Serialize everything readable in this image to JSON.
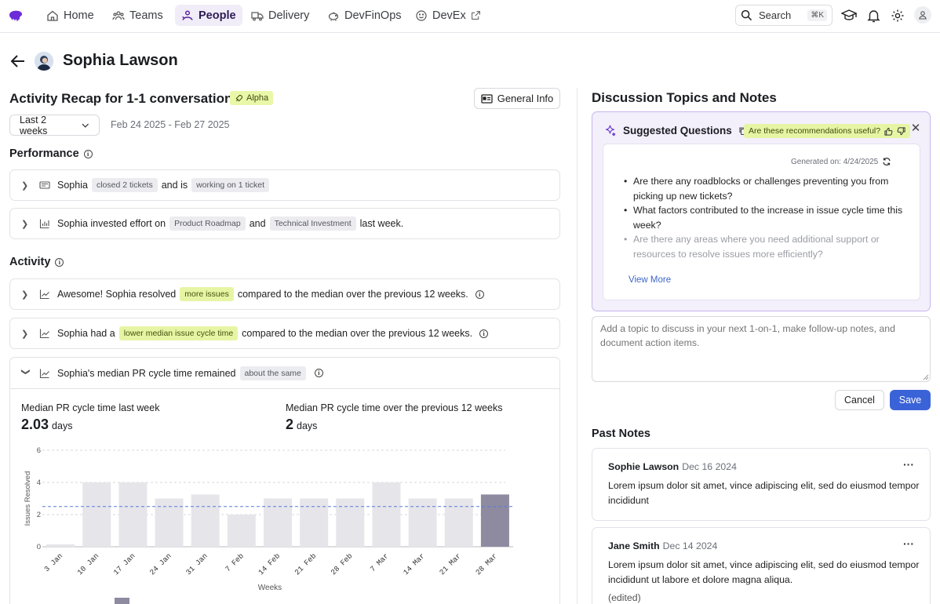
{
  "nav": {
    "items": [
      {
        "label": "Home",
        "icon": "home-icon"
      },
      {
        "label": "Teams",
        "icon": "teams-icon"
      },
      {
        "label": "People",
        "icon": "people-icon",
        "active": true
      },
      {
        "label": "Delivery",
        "icon": "truck-icon"
      },
      {
        "label": "DevFinOps",
        "icon": "piggy-bank-icon"
      },
      {
        "label": "DevEx",
        "icon": "smile-icon"
      }
    ],
    "search_label": "Search",
    "search_shortcut": "⌘K"
  },
  "person": {
    "name": "Sophia Lawson"
  },
  "recap": {
    "title": "Activity Recap for 1-1 conversations",
    "badge": "Alpha",
    "general_info": "General Info",
    "range_label": "Last 2 weeks",
    "date_range": "Feb 24 2025 - Feb 27 2025"
  },
  "performance": {
    "title": "Performance",
    "row1": {
      "name": "Sophia",
      "chip1": "closed 2 tickets",
      "mid": "and is",
      "chip2": "working on 1 ticket"
    },
    "row2": {
      "pre": "Sophia invested effort on",
      "chip1": "Product Roadmap",
      "mid": "and",
      "chip2": "Technical Investment",
      "post": "last week."
    }
  },
  "activity": {
    "title": "Activity",
    "row1": {
      "pre": "Awesome! Sophia resolved",
      "chip": "more issues",
      "post": "compared to the median over the previous 12 weeks."
    },
    "row2": {
      "pre": "Sophia had a",
      "chip": "lower median issue cycle time",
      "post": "compared to the median over the previous 12 weeks."
    },
    "row3": {
      "pre": "Sophia's median PR cycle time remained",
      "chip": "about the same",
      "metric1_label": "Median PR cycle time last week",
      "metric1_value": "2.03",
      "metric2_label": "Median PR cycle time over the previous 12 weeks",
      "metric2_value": "2",
      "unit": "days"
    }
  },
  "chart_data": {
    "type": "bar",
    "categories": [
      "3 Jan",
      "10 Jan",
      "17 Jan",
      "24 Jan",
      "31 Jan",
      "7 Feb",
      "14 Feb",
      "21 Feb",
      "28 Feb",
      "7 Mar",
      "14 Mar",
      "21 Mar",
      "28 Mar"
    ],
    "values": [
      0.15,
      4,
      4,
      3,
      3.25,
      2,
      3,
      3,
      3,
      4,
      3,
      3,
      3.25
    ],
    "highlight_index": 12,
    "median_line": 2.5,
    "ylim": [
      0,
      6
    ],
    "yticks": [
      0,
      2,
      4,
      6
    ],
    "ylabel": "Issues Resolved",
    "xlabel": "Weeks",
    "grid": true,
    "colors": {
      "bar": "#e6e5ea",
      "highlight": "#8e8aa0",
      "median": "#5b7bd8"
    }
  },
  "discussion": {
    "title": "Discussion Topics and Notes",
    "suggested_title": "Suggested Questions",
    "useful_prompt": "Are these recommendations useful?",
    "generated_on": "Generated on: 4/24/2025",
    "questions": [
      "Are there any roadblocks or challenges preventing you from picking up new tickets?",
      "What factors contributed to the increase in issue cycle time this week?",
      "Are there any areas where you need additional support or resources to resolve issues more efficiently?"
    ],
    "view_more": "View More",
    "input_placeholder": "Add a topic to discuss in your next 1-on-1, make follow-up notes, and document action items.",
    "cancel": "Cancel",
    "save": "Save"
  },
  "past_notes": {
    "title": "Past Notes",
    "notes": [
      {
        "author": "Sophie Lawson",
        "date": "Dec 16 2024",
        "body": "Lorem ipsum dolor sit amet, vince adipiscing elit, sed do eiusmod tempor incididunt",
        "edited": ""
      },
      {
        "author": "Jane Smith",
        "date": "Dec 14 2024",
        "body": "Lorem ipsum dolor sit amet, vince adipiscing elit, sed do eiusmod tempor incididunt ut labore et dolore magna aliqua.",
        "edited": "(edited)"
      }
    ]
  }
}
